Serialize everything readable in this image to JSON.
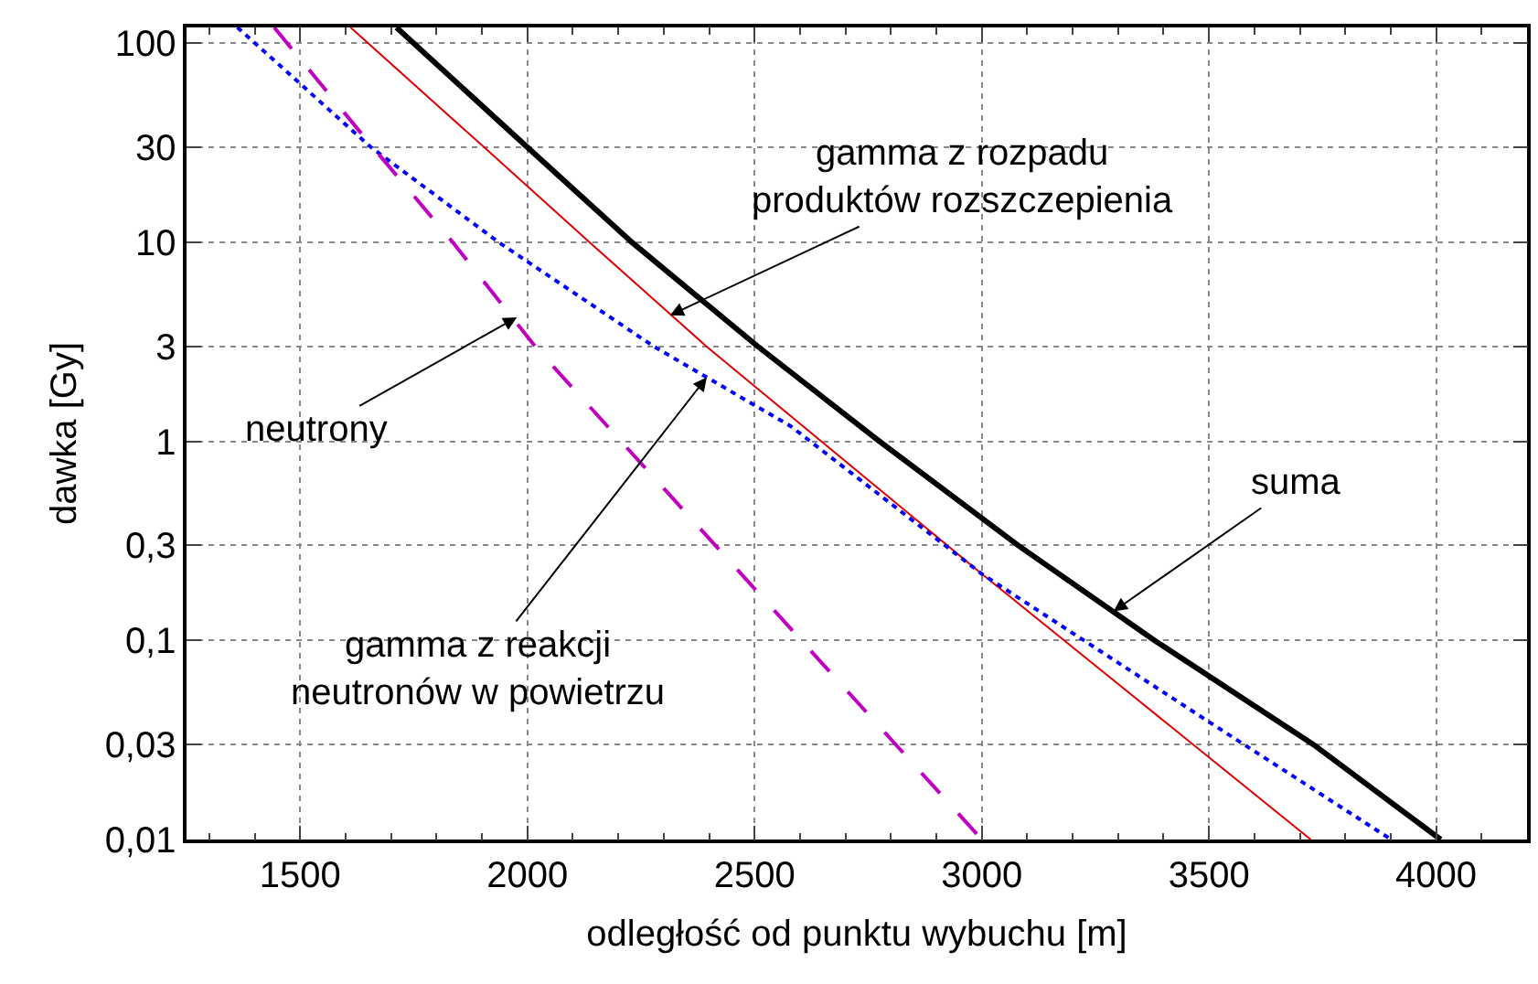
{
  "chart_data": {
    "type": "line",
    "xlabel": "odległość od punktu wybuchu [m]",
    "ylabel": "dawka [Gy]",
    "log": "y",
    "grid": true,
    "marker": "none",
    "xlim": [
      1250,
      4200
    ],
    "xticks": [
      1500,
      2000,
      2500,
      3000,
      3500,
      4000
    ],
    "ylim": [
      0.01,
      120
    ],
    "yticks": [
      {
        "value": 0.01,
        "label": "0,01"
      },
      {
        "value": 0.03,
        "label": "0,03"
      },
      {
        "value": 0.1,
        "label": "0,1"
      },
      {
        "value": 0.3,
        "label": "0,3"
      },
      1,
      3,
      10,
      30,
      100
    ],
    "series": [
      {
        "color": "#000000",
        "line_style": "solid",
        "x": [
          1712,
          2000,
          2230,
          2507,
          2775,
          3080,
          3380,
          3730,
          4010
        ],
        "values": [
          120,
          30,
          10,
          3,
          1,
          0.3,
          0.1,
          0.03,
          0.01
        ]
      },
      {
        "color": "#e00000",
        "line_style": "solid",
        "x": [
          1611,
          1905,
          2137,
          2394,
          3000,
          3724
        ],
        "values": [
          120,
          30,
          10,
          3,
          0.216,
          0.01
        ]
      },
      {
        "color": "#0000ff",
        "line_style": "dotted",
        "x": [
          1362,
          1656,
          1937,
          2278,
          2580,
          3000,
          3500,
          3901
        ],
        "values": [
          120,
          30,
          10,
          3,
          1.19,
          0.216,
          0.039,
          0.01
        ]
      },
      {
        "color": "#c000c0",
        "line_style": "dashed",
        "x": [
          1443,
          1643,
          1836,
          2017,
          3000
        ],
        "values": [
          120,
          33.4,
          10,
          3,
          0.01
        ]
      }
    ],
    "annotations": [
      {
        "text": "gamma z rozpadu\nproduktów rozszczepienia",
        "x": 2314,
        "y": 4.3
      },
      {
        "text": "neutrony",
        "x": 1977,
        "y": 4.2
      },
      {
        "text": "gamma z reakcji\nneutronów w powietrzu",
        "x": 2395,
        "y": 2.1
      },
      {
        "text": "suma",
        "x": 3290,
        "y": 0.14
      }
    ]
  }
}
